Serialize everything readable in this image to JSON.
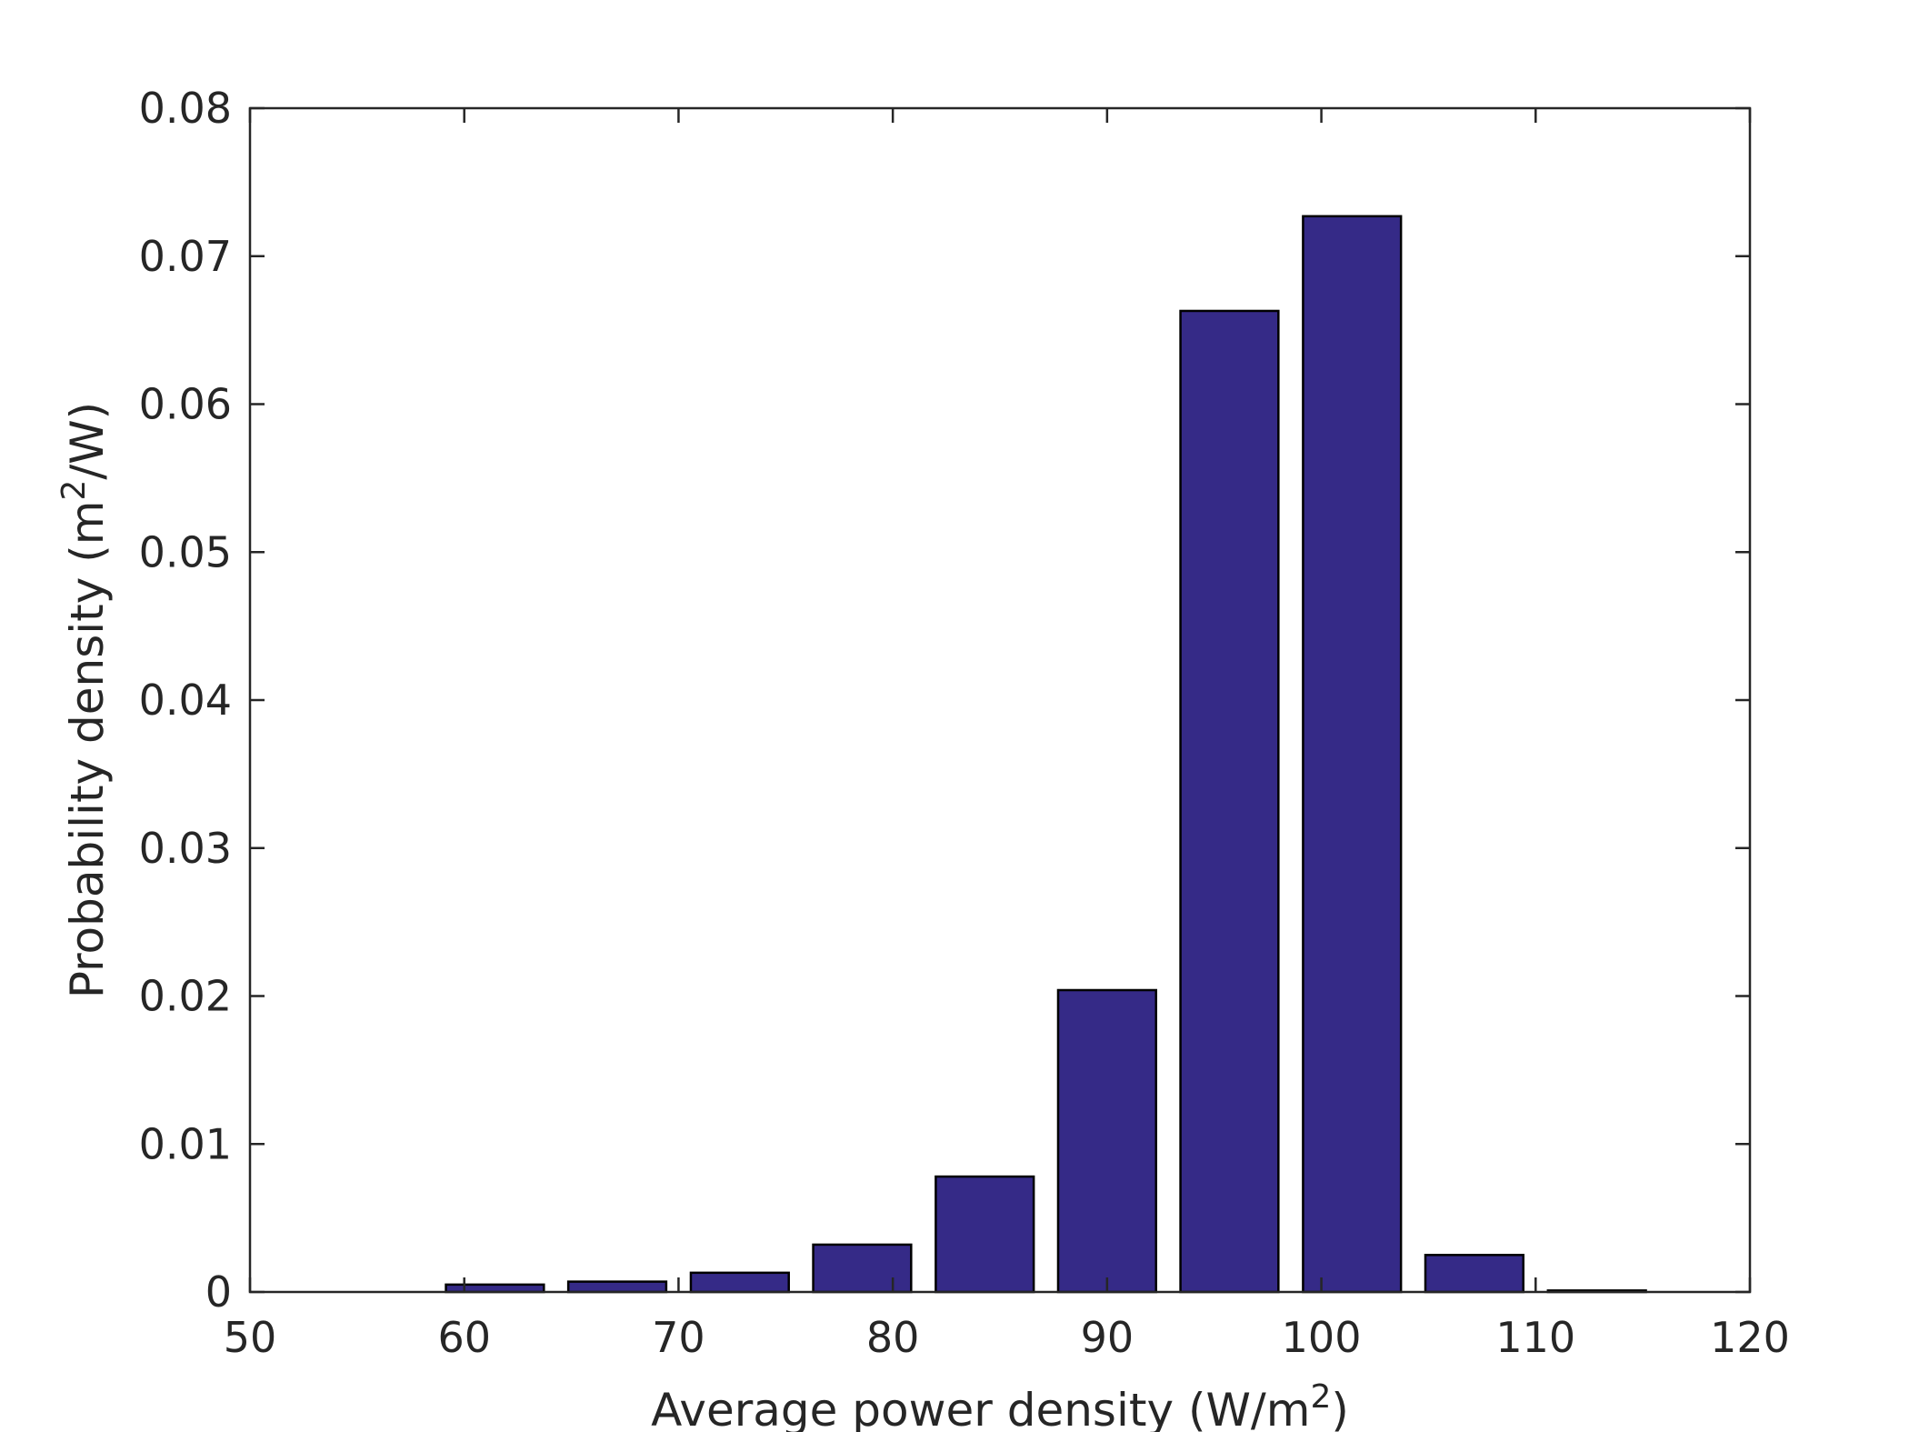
{
  "chart_data": {
    "type": "bar",
    "title": "",
    "xlabel": "Average power density (W/m",
    "xlabel_sup": "2",
    "xlabel_suffix": ")",
    "ylabel": "Probability density (m",
    "ylabel_sup": "2",
    "ylabel_suffix": "/W)",
    "xlim": [
      50,
      120
    ],
    "ylim": [
      0,
      0.08
    ],
    "xticks": [
      "50",
      "60",
      "70",
      "80",
      "90",
      "100",
      "110",
      "120"
    ],
    "yticks": [
      "0",
      "0.01",
      "0.02",
      "0.03",
      "0.04",
      "0.05",
      "0.06",
      "0.07",
      "0.08"
    ],
    "bar_color": "#352a87",
    "bar_edge_color": "#000000",
    "grid": false,
    "bin_width": 5.714,
    "bars": [
      {
        "x": 61.43,
        "value": 0.0005
      },
      {
        "x": 67.14,
        "value": 0.0007
      },
      {
        "x": 72.86,
        "value": 0.0013
      },
      {
        "x": 78.57,
        "value": 0.0032
      },
      {
        "x": 84.29,
        "value": 0.0078
      },
      {
        "x": 90.0,
        "value": 0.0204
      },
      {
        "x": 95.71,
        "value": 0.0663
      },
      {
        "x": 101.43,
        "value": 0.0727
      },
      {
        "x": 107.14,
        "value": 0.0025
      },
      {
        "x": 112.86,
        "value": 0.0001
      }
    ]
  }
}
